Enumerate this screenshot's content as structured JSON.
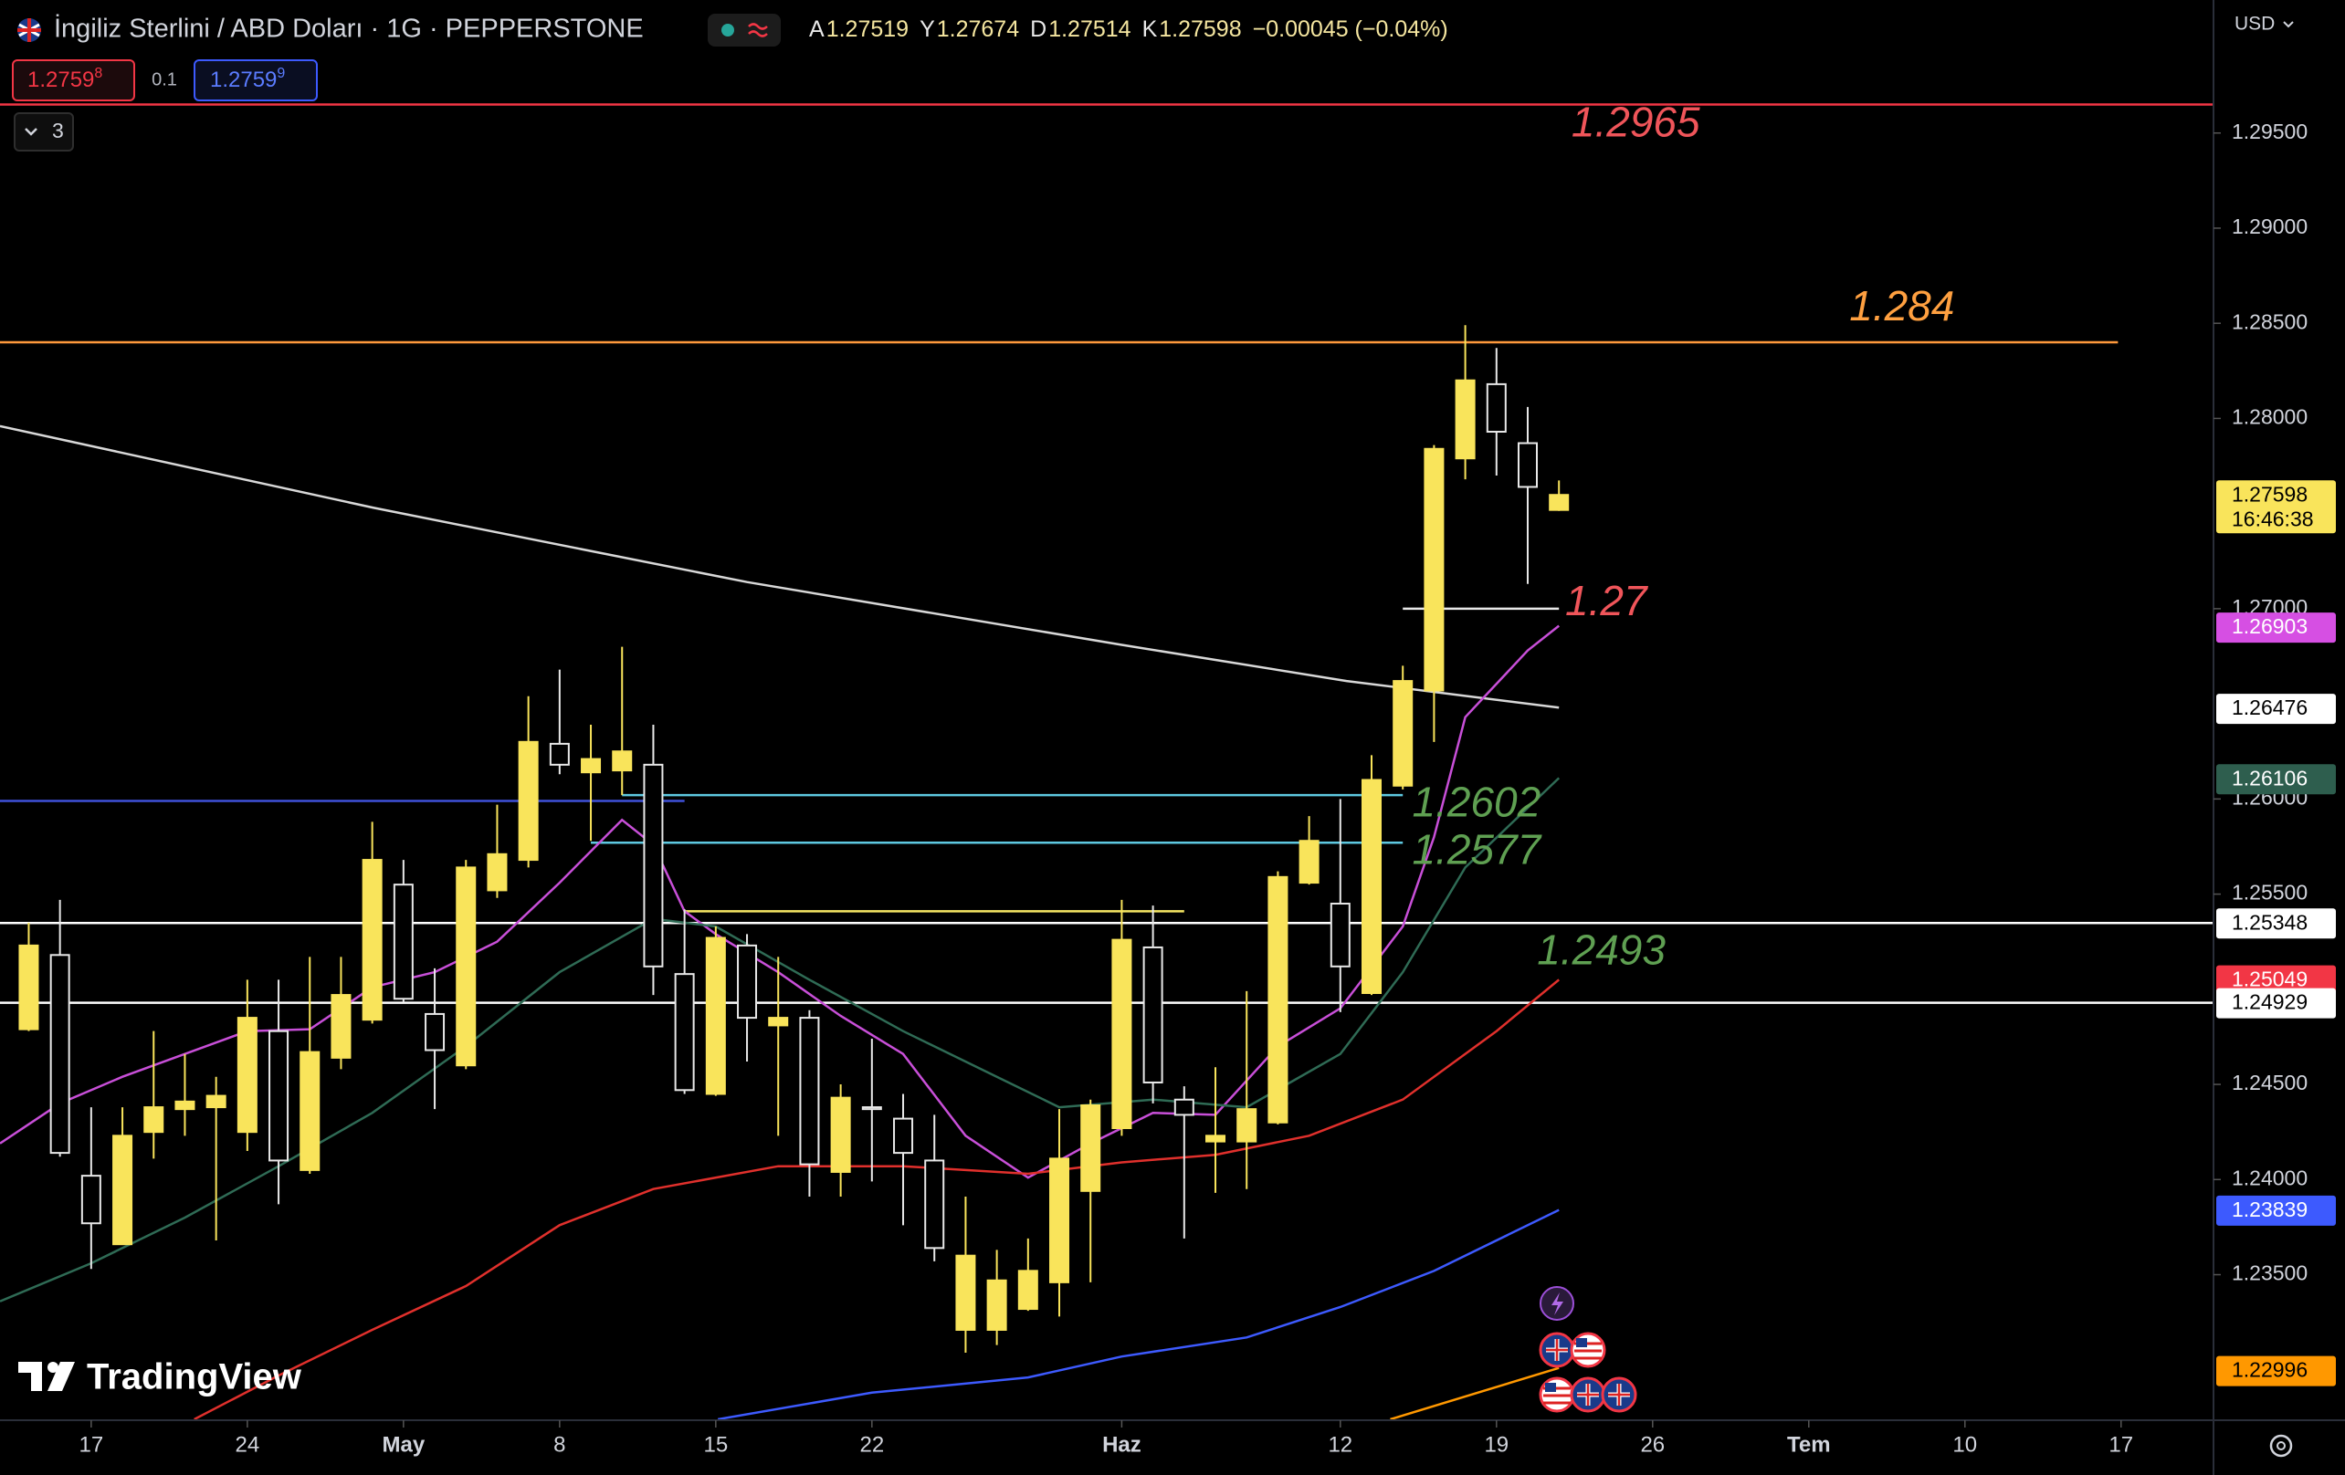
{
  "header": {
    "symbol": "İngiliz Sterlini / ABD Doları · 1G · PEPPERSTONE",
    "ohlc_labels": [
      "A",
      "Y",
      "D",
      "K"
    ],
    "change": "−0.00045 (−0.04%)"
  },
  "trade": {
    "sell": {
      "price": "1.2759",
      "pip": "8"
    },
    "spread": 0.1,
    "buy": {
      "price": "1.2759",
      "pip": "9"
    }
  },
  "indicators_toggle": "3",
  "currency": "USD",
  "logo": "TradingView",
  "chart_data": {
    "type": "candlestick",
    "up_color": "#f9e45b",
    "down_color": "#e8e8e8",
    "xlim": [
      -2.92,
      67.96
    ],
    "ylim": [
      1.22735,
      1.30199
    ],
    "xticks": [
      {
        "value": 0,
        "label": "17"
      },
      {
        "value": 5,
        "label": "24"
      },
      {
        "value": 10,
        "label": "May"
      },
      {
        "value": 15,
        "label": "8"
      },
      {
        "value": 20,
        "label": "15"
      },
      {
        "value": 25,
        "label": "22"
      },
      {
        "value": 33,
        "label": "Haz"
      },
      {
        "value": 40,
        "label": "12"
      },
      {
        "value": 45,
        "label": "19"
      },
      {
        "value": 50,
        "label": "26"
      },
      {
        "value": 55,
        "label": "Tem"
      },
      {
        "value": 60,
        "label": "10"
      },
      {
        "value": 65,
        "label": "17"
      }
    ],
    "yticks": [
      {
        "value": 1.295,
        "label": "1.29500"
      },
      {
        "value": 1.29,
        "label": "1.29000"
      },
      {
        "value": 1.285,
        "label": "1.28500"
      },
      {
        "value": 1.28,
        "label": "1.28000"
      },
      {
        "value": 1.27,
        "label": "1.27000"
      },
      {
        "value": 1.26,
        "label": "1.26000"
      },
      {
        "value": 1.255,
        "label": "1.25500"
      },
      {
        "value": 1.245,
        "label": "1.24500"
      },
      {
        "value": 1.24,
        "label": "1.24000"
      },
      {
        "value": 1.235,
        "label": "1.23500"
      }
    ],
    "x": [
      -2,
      -1,
      0,
      1,
      2,
      3,
      4,
      5,
      6,
      7,
      8,
      9,
      10,
      11,
      12,
      13,
      14,
      15,
      16,
      17,
      18,
      19,
      20,
      21,
      22,
      23,
      24,
      25,
      26,
      27,
      28,
      29,
      30,
      31,
      32,
      33,
      34,
      35,
      36,
      37,
      38,
      39,
      40,
      41,
      42,
      43,
      44,
      45,
      46,
      47
    ],
    "open": [
      1.2479,
      1.2518,
      1.2402,
      1.2366,
      1.2425,
      1.2437,
      1.2438,
      1.2425,
      1.2478,
      1.2405,
      1.2464,
      1.2484,
      1.2555,
      1.2487,
      1.246,
      1.2552,
      1.2568,
      1.2629,
      1.2614,
      1.2615,
      1.2618,
      1.2508,
      1.2445,
      1.2523,
      1.2481,
      1.2485,
      1.2404,
      1.2438,
      1.2432,
      1.241,
      1.2321,
      1.2321,
      1.2332,
      1.2346,
      1.2394,
      1.2427,
      1.2522,
      1.2442,
      1.242,
      1.242,
      1.243,
      1.2556,
      1.2545,
      1.2498,
      1.2607,
      1.2657,
      1.2779,
      1.2818,
      1.2787,
      1.27519
    ],
    "high": [
      1.2535,
      1.2547,
      1.2438,
      1.2438,
      1.2478,
      1.2466,
      1.2454,
      1.2505,
      1.2505,
      1.2517,
      1.2517,
      1.2588,
      1.2568,
      1.2511,
      1.2568,
      1.2597,
      1.2654,
      1.2668,
      1.2639,
      1.268,
      1.2639,
      1.2542,
      1.2533,
      1.2529,
      1.2517,
      1.2489,
      1.245,
      1.2474,
      1.2445,
      1.2434,
      1.2391,
      1.2363,
      1.2369,
      1.2437,
      1.2442,
      1.2547,
      1.2544,
      1.2449,
      1.2459,
      1.2499,
      1.2562,
      1.2591,
      1.26,
      1.2623,
      1.267,
      1.2786,
      1.2849,
      1.2837,
      1.2806,
      1.27674
    ],
    "low": [
      1.2478,
      1.2412,
      1.2353,
      1.2366,
      1.2411,
      1.2423,
      1.2368,
      1.2415,
      1.2387,
      1.2403,
      1.2458,
      1.2482,
      1.2493,
      1.2437,
      1.2458,
      1.2548,
      1.2564,
      1.2613,
      1.2578,
      1.2602,
      1.2497,
      1.2445,
      1.2444,
      1.2462,
      1.2423,
      1.2391,
      1.2391,
      1.2399,
      1.2376,
      1.2357,
      1.2309,
      1.2313,
      1.2331,
      1.2328,
      1.2346,
      1.2423,
      1.244,
      1.2369,
      1.2393,
      1.2395,
      1.2429,
      1.2555,
      1.2488,
      1.2497,
      1.2605,
      1.263,
      1.2768,
      1.277,
      1.2713,
      1.27514
    ],
    "close": [
      1.2523,
      1.2414,
      1.2377,
      1.2423,
      1.2438,
      1.2441,
      1.2444,
      1.2485,
      1.241,
      1.2467,
      1.2497,
      1.2568,
      1.2495,
      1.2468,
      1.2564,
      1.2571,
      1.263,
      1.2618,
      1.2621,
      1.2625,
      1.2512,
      1.2447,
      1.2527,
      1.2485,
      1.2485,
      1.2408,
      1.2443,
      1.2437,
      1.2414,
      1.2364,
      1.236,
      1.2347,
      1.2352,
      1.2411,
      1.2439,
      1.2526,
      1.2451,
      1.2434,
      1.2423,
      1.2437,
      1.2559,
      1.2578,
      1.2512,
      1.261,
      1.2662,
      1.2784,
      1.282,
      1.2793,
      1.2764,
      1.27598
    ],
    "lines": [
      {
        "color": "#d8d8d8",
        "x": [
          -2.92,
          9.05,
          21,
          33,
          40.2,
          47
        ],
        "values": [
          1.2796,
          1.2753,
          1.2714,
          1.2681,
          1.2662,
          1.2648
        ]
      },
      {
        "color": "#c84fd8",
        "x": [
          -2.92,
          -1,
          1,
          3,
          5,
          7,
          9,
          11,
          13,
          15,
          17,
          18,
          19,
          20,
          22,
          24,
          26,
          28,
          30,
          32,
          34,
          36,
          38,
          40,
          42,
          43,
          44,
          46,
          47
        ],
        "values": [
          1.2419,
          1.244,
          1.2454,
          1.2466,
          1.2478,
          1.2479,
          1.2501,
          1.2509,
          1.2525,
          1.2556,
          1.2589,
          1.2576,
          1.2541,
          1.2529,
          1.2509,
          1.2486,
          1.2466,
          1.2423,
          1.2401,
          1.2419,
          1.2435,
          1.2434,
          1.247,
          1.249,
          1.2533,
          1.258,
          1.2643,
          1.2678,
          1.2691
        ]
      },
      {
        "color": "#2f6b55",
        "x": [
          -2.92,
          0,
          3,
          6,
          9,
          12,
          15,
          18,
          20,
          23,
          26,
          29,
          31,
          34,
          37,
          40,
          42,
          44,
          47
        ],
        "values": [
          1.2336,
          1.2356,
          1.238,
          1.2407,
          1.2435,
          1.247,
          1.2509,
          1.2537,
          1.2533,
          1.2505,
          1.2478,
          1.2454,
          1.2438,
          1.2442,
          1.2438,
          1.2466,
          1.2509,
          1.2564,
          1.2611
        ]
      },
      {
        "color": "#e0302c",
        "x": [
          3.3,
          6,
          9,
          12,
          15,
          18,
          22,
          26,
          30,
          33,
          36,
          39,
          42,
          45,
          47
        ],
        "values": [
          1.2274,
          1.2297,
          1.2321,
          1.2344,
          1.2376,
          1.2395,
          1.2407,
          1.2407,
          1.2403,
          1.2409,
          1.2413,
          1.2423,
          1.2442,
          1.2478,
          1.2505
        ]
      },
      {
        "color": "#3d5afe",
        "x": [
          20.07,
          25,
          30,
          33,
          37,
          40,
          43,
          47
        ],
        "values": [
          1.2274,
          1.2288,
          1.2296,
          1.2307,
          1.2317,
          1.2333,
          1.2352,
          1.2384
        ]
      },
      {
        "color": "#ff9800",
        "x": [
          41.6,
          47
        ],
        "values": [
          1.2274,
          1.2301
        ]
      }
    ],
    "levels": [
      {
        "value": 1.2965,
        "color": "#f23645",
        "x": [
          -2.92,
          67.96
        ]
      },
      {
        "value": 1.284,
        "color": "#ff9a3c",
        "x": [
          -2.92,
          64.9
        ]
      },
      {
        "value": 1.27,
        "color": "#e8e8e8",
        "x": [
          42,
          47
        ]
      },
      {
        "value": 1.2602,
        "color": "#5ec8e0",
        "x": [
          17,
          42
        ]
      },
      {
        "value": 1.2577,
        "color": "#5ec8e0",
        "x": [
          16,
          42
        ]
      },
      {
        "value": 1.2541,
        "color": "#f5e663",
        "x": [
          19,
          35
        ]
      },
      {
        "value": 1.2599,
        "color": "#3f51d8",
        "x": [
          -2.92,
          19
        ]
      },
      {
        "value": 1.25348,
        "color": "#ffffff",
        "x": [
          -2.92,
          67.96
        ]
      },
      {
        "value": 1.24929,
        "color": "#ffffff",
        "x": [
          -2.92,
          67.96
        ]
      }
    ],
    "annotations": [
      {
        "value": 1.2965,
        "color": "#f0555a",
        "x": 47.4
      },
      {
        "value": 1.284,
        "color": "#ffa040",
        "x": 56.3
      },
      {
        "value": 1.27,
        "color": "#f0555a",
        "x": 47.2
      },
      {
        "value": 1.2602,
        "color": "#5fa052",
        "x": 42.3
      },
      {
        "value": 1.2577,
        "color": "#5fa052",
        "x": 42.3
      },
      {
        "value": 1.2493,
        "color": "#5fa052",
        "x": 46.3
      }
    ],
    "price_labels": [
      {
        "value": 1.27598,
        "color": "#f9e45b",
        "text_color": "#000000",
        "time": "16:46:38"
      },
      {
        "value": 1.26903,
        "color": "#d64fe3",
        "text_color": "#ffffff"
      },
      {
        "value": 1.26476,
        "color": "#ffffff",
        "text_color": "#000000"
      },
      {
        "value": 1.26106,
        "color": "#2e5e4e",
        "text_color": "#ffffff"
      },
      {
        "value": 1.25348,
        "color": "#ffffff",
        "text_color": "#000000"
      },
      {
        "value": 1.25049,
        "color": "#f23645",
        "text_color": "#ffffff"
      },
      {
        "value": 1.24929,
        "color": "#ffffff",
        "text_color": "#000000"
      },
      {
        "value": 1.23839,
        "color": "#3d5afe",
        "text_color": "#ffffff"
      },
      {
        "value": 1.22996,
        "color": "#ff9800",
        "text_color": "#000000"
      }
    ]
  }
}
